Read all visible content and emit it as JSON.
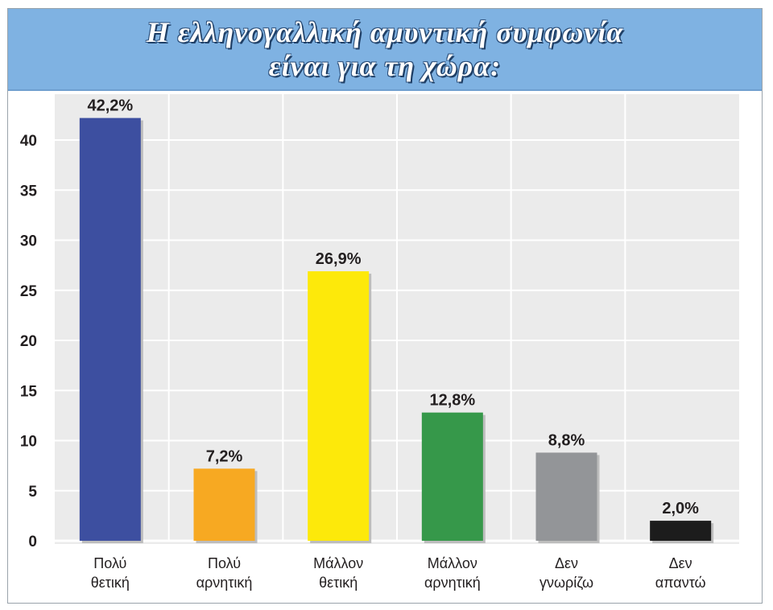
{
  "title": {
    "line1": "Η ελληνογαλλική αμυντική συμφωνία",
    "line2": "είναι για τη χώρα:"
  },
  "chart_data": {
    "type": "bar",
    "title": "Η ελληνογαλλική αμυντική συμφωνία είναι για τη χώρα:",
    "xlabel": "",
    "ylabel": "",
    "ylim": [
      0,
      45
    ],
    "yticks": [
      0,
      5,
      10,
      15,
      20,
      25,
      30,
      35,
      40
    ],
    "grid": true,
    "categories": [
      [
        "Πολύ",
        "θετική"
      ],
      [
        "Πολύ",
        "αρνητική"
      ],
      [
        "Μάλλον",
        "θετική"
      ],
      [
        "Μάλλον",
        "αρνητική"
      ],
      [
        "Δεν",
        "γνωρίζω"
      ],
      [
        "Δεν",
        "απαντώ"
      ]
    ],
    "values": [
      42.2,
      7.2,
      26.9,
      12.8,
      8.8,
      2.0
    ],
    "value_labels": [
      "42,2%",
      "7,2%",
      "26,9%",
      "12,8%",
      "8,8%",
      "2,0%"
    ],
    "colors": [
      "#3d4fa0",
      "#f7a922",
      "#fde90a",
      "#36984a",
      "#939598",
      "#1c1c1c"
    ],
    "plot_background": "#ebebeb",
    "grid_color": "#ffffff"
  }
}
